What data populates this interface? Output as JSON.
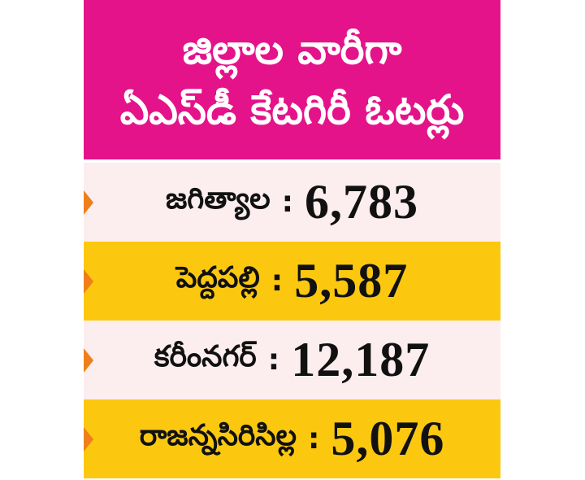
{
  "header": {
    "line1": "జిల్లాల వారీగా",
    "line2": "ఏఎస్‌డీ కేటగిరీ ఓటర్లు"
  },
  "separator": ":",
  "rows": [
    {
      "district": "జగిత్యాల",
      "count": "6,783"
    },
    {
      "district": "పెద్దపల్లి",
      "count": "5,587"
    },
    {
      "district": "కరీంనగర్",
      "count": "12,187"
    },
    {
      "district": "రాజన్నసిరిసిల్ల",
      "count": "5,076"
    }
  ],
  "colors": {
    "header_bg": "#e4138a",
    "row_light": "#fcedee",
    "row_gold": "#fcc80f",
    "arrow": "#ef7f1a"
  }
}
